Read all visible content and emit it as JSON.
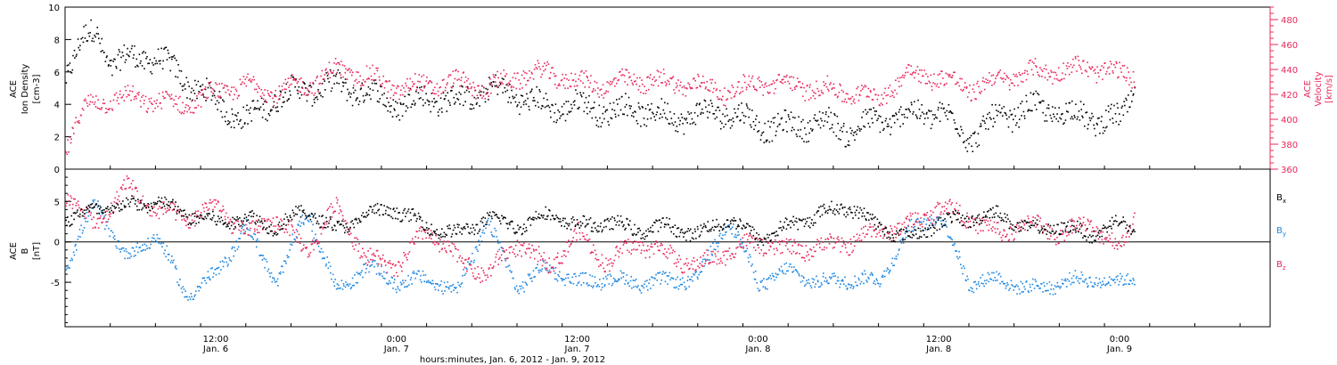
{
  "colors": {
    "black": "#000000",
    "pink": "#e8285a",
    "blue": "#1e87e0"
  },
  "figure": {
    "xlabel": "hours:minutes, Jan.  6, 2012 - Jan. 9, 2012"
  },
  "x_axis": {
    "ticks": [
      {
        "hour": 12,
        "time": "12:00",
        "date": "Jan. 6"
      },
      {
        "hour": 24,
        "time": "0:00",
        "date": "Jan. 7"
      },
      {
        "hour": 36,
        "time": "12:00",
        "date": "Jan. 7"
      },
      {
        "hour": 48,
        "time": "0:00",
        "date": "Jan. 8"
      },
      {
        "hour": 60,
        "time": "12:00",
        "date": "Jan. 8"
      },
      {
        "hour": 72,
        "time": "0:00",
        "date": "Jan. 9"
      }
    ]
  },
  "chart_data": [
    {
      "type": "scatter",
      "title": "",
      "xlabel": "hours:minutes, Jan.  6, 2012 - Jan. 9, 2012",
      "xlim": [
        2,
        82
      ],
      "left_axis": {
        "label_lines": [
          "ACE",
          "Ion Density",
          "[cm-3]"
        ],
        "unit": "[cm-3]",
        "ylim": [
          0,
          10
        ],
        "ticks": [
          0,
          2,
          4,
          6,
          8,
          10
        ],
        "tick_labels": [
          "0",
          "2",
          "4",
          "6",
          "8",
          "10"
        ]
      },
      "right_axis": {
        "label_lines": [
          "ACE",
          "Velocity",
          "[km/s]"
        ],
        "unit": "[km/s]",
        "ylim": [
          360,
          490
        ],
        "ticks": [
          360,
          380,
          400,
          420,
          440,
          460,
          480
        ],
        "tick_labels": [
          "360",
          "380",
          "400",
          "420",
          "440",
          "460",
          "480"
        ]
      },
      "series": [
        {
          "key": "density",
          "axis": "left",
          "color": "#000000",
          "x": [
            2,
            3,
            4,
            5,
            6,
            8,
            10,
            12,
            14,
            16,
            18,
            20,
            22,
            24,
            26,
            28,
            30,
            32,
            34,
            36,
            38,
            40,
            42,
            44,
            46,
            48,
            50,
            52,
            54,
            56,
            58,
            60,
            62,
            64,
            66,
            68,
            70,
            72,
            73
          ],
          "y": [
            6.0,
            7.8,
            8.5,
            6.5,
            6.8,
            7.0,
            5.5,
            4.2,
            3.0,
            4.5,
            5.0,
            5.2,
            4.8,
            4.0,
            4.5,
            4.2,
            5.0,
            4.6,
            3.8,
            4.0,
            3.6,
            3.8,
            3.2,
            3.4,
            3.6,
            2.8,
            2.6,
            3.0,
            2.4,
            3.0,
            3.4,
            3.6,
            2.0,
            3.2,
            3.8,
            3.6,
            3.2,
            3.0,
            5.0
          ]
        },
        {
          "key": "velocity",
          "axis": "right",
          "color": "#e8285a",
          "x": [
            2,
            3,
            4,
            6,
            8,
            10,
            12,
            14,
            16,
            18,
            20,
            22,
            24,
            26,
            28,
            30,
            32,
            34,
            36,
            38,
            40,
            42,
            44,
            46,
            48,
            50,
            52,
            54,
            56,
            58,
            60,
            62,
            64,
            66,
            68,
            70,
            72,
            73
          ],
          "y": [
            378,
            405,
            415,
            418,
            415,
            412,
            422,
            428,
            422,
            428,
            440,
            435,
            425,
            428,
            430,
            425,
            435,
            438,
            430,
            428,
            432,
            430,
            428,
            422,
            430,
            428,
            425,
            422,
            418,
            438,
            434,
            425,
            432,
            438,
            440,
            442,
            436,
            436
          ]
        }
      ]
    },
    {
      "type": "scatter",
      "title": "",
      "xlim": [
        2,
        82
      ],
      "left_axis": {
        "label_lines": [
          "ACE",
          "B",
          "[nT]"
        ],
        "unit": "[nT]",
        "ylim": [
          -10.5,
          9
        ],
        "ticks": [
          -5,
          0,
          5
        ],
        "tick_labels": [
          "-5",
          "0",
          "5"
        ]
      },
      "legend": [
        {
          "label": "B",
          "sub": "x",
          "color": "#000000"
        },
        {
          "label": "B",
          "sub": "y",
          "color": "#1e87e0"
        },
        {
          "label": "B",
          "sub": "z",
          "color": "#e8285a"
        }
      ],
      "series": [
        {
          "key": "bx",
          "color": "#000000",
          "x": [
            2,
            4,
            6,
            8,
            10,
            12,
            14,
            16,
            18,
            20,
            22,
            24,
            26,
            28,
            30,
            32,
            34,
            36,
            38,
            40,
            42,
            44,
            46,
            48,
            50,
            52,
            54,
            56,
            58,
            60,
            62,
            64,
            66,
            68,
            70,
            72,
            73
          ],
          "y": [
            3.0,
            4.0,
            4.5,
            5.0,
            3.5,
            2.5,
            3.0,
            2.0,
            4.0,
            1.5,
            3.5,
            4.0,
            2.0,
            1.0,
            3.0,
            2.0,
            3.5,
            2.0,
            2.5,
            1.5,
            2.0,
            1.0,
            3.0,
            0.5,
            2.0,
            3.5,
            4.5,
            2.0,
            0.5,
            2.5,
            3.0,
            3.5,
            1.5,
            2.0,
            1.0,
            2.5,
            1.5
          ]
        },
        {
          "key": "by",
          "color": "#1e87e0",
          "x": [
            2,
            4,
            6,
            8,
            10,
            12,
            14,
            16,
            18,
            20,
            22,
            24,
            26,
            28,
            30,
            32,
            34,
            36,
            38,
            40,
            42,
            44,
            46,
            48,
            50,
            52,
            54,
            56,
            58,
            60,
            62,
            64,
            66,
            68,
            70,
            72,
            73
          ],
          "y": [
            -3.0,
            5.0,
            -2.0,
            1.0,
            -6.5,
            -4.0,
            2.0,
            -5.0,
            4.0,
            -6.0,
            -3.0,
            -5.0,
            -4.5,
            -6.0,
            2.5,
            -5.5,
            -3.0,
            -5.0,
            -4.5,
            -5.0,
            -4.8,
            -4.5,
            3.0,
            -5.0,
            -3.5,
            -5.0,
            -4.5,
            -4.8,
            1.5,
            3.5,
            -5.0,
            -4.5,
            -5.8,
            -5.0,
            -4.5,
            -5.0,
            -4.0
          ]
        },
        {
          "key": "bz",
          "color": "#e8285a",
          "x": [
            2,
            4,
            6,
            8,
            10,
            12,
            14,
            16,
            18,
            20,
            22,
            24,
            26,
            28,
            30,
            32,
            34,
            36,
            38,
            40,
            42,
            44,
            46,
            48,
            50,
            52,
            54,
            56,
            58,
            60,
            62,
            64,
            66,
            68,
            70,
            72,
            73
          ],
          "y": [
            6.0,
            2.0,
            7.0,
            4.0,
            3.0,
            4.5,
            1.0,
            3.0,
            -1.0,
            4.5,
            -2.0,
            -3.0,
            1.5,
            -2.0,
            -4.0,
            0.0,
            -3.0,
            1.0,
            -2.5,
            0.0,
            -1.5,
            -3.0,
            -1.0,
            0.0,
            -1.0,
            -0.5,
            0.0,
            1.5,
            2.0,
            4.5,
            3.0,
            1.0,
            2.5,
            1.0,
            2.5,
            -1.0,
            3.5
          ]
        }
      ]
    }
  ]
}
